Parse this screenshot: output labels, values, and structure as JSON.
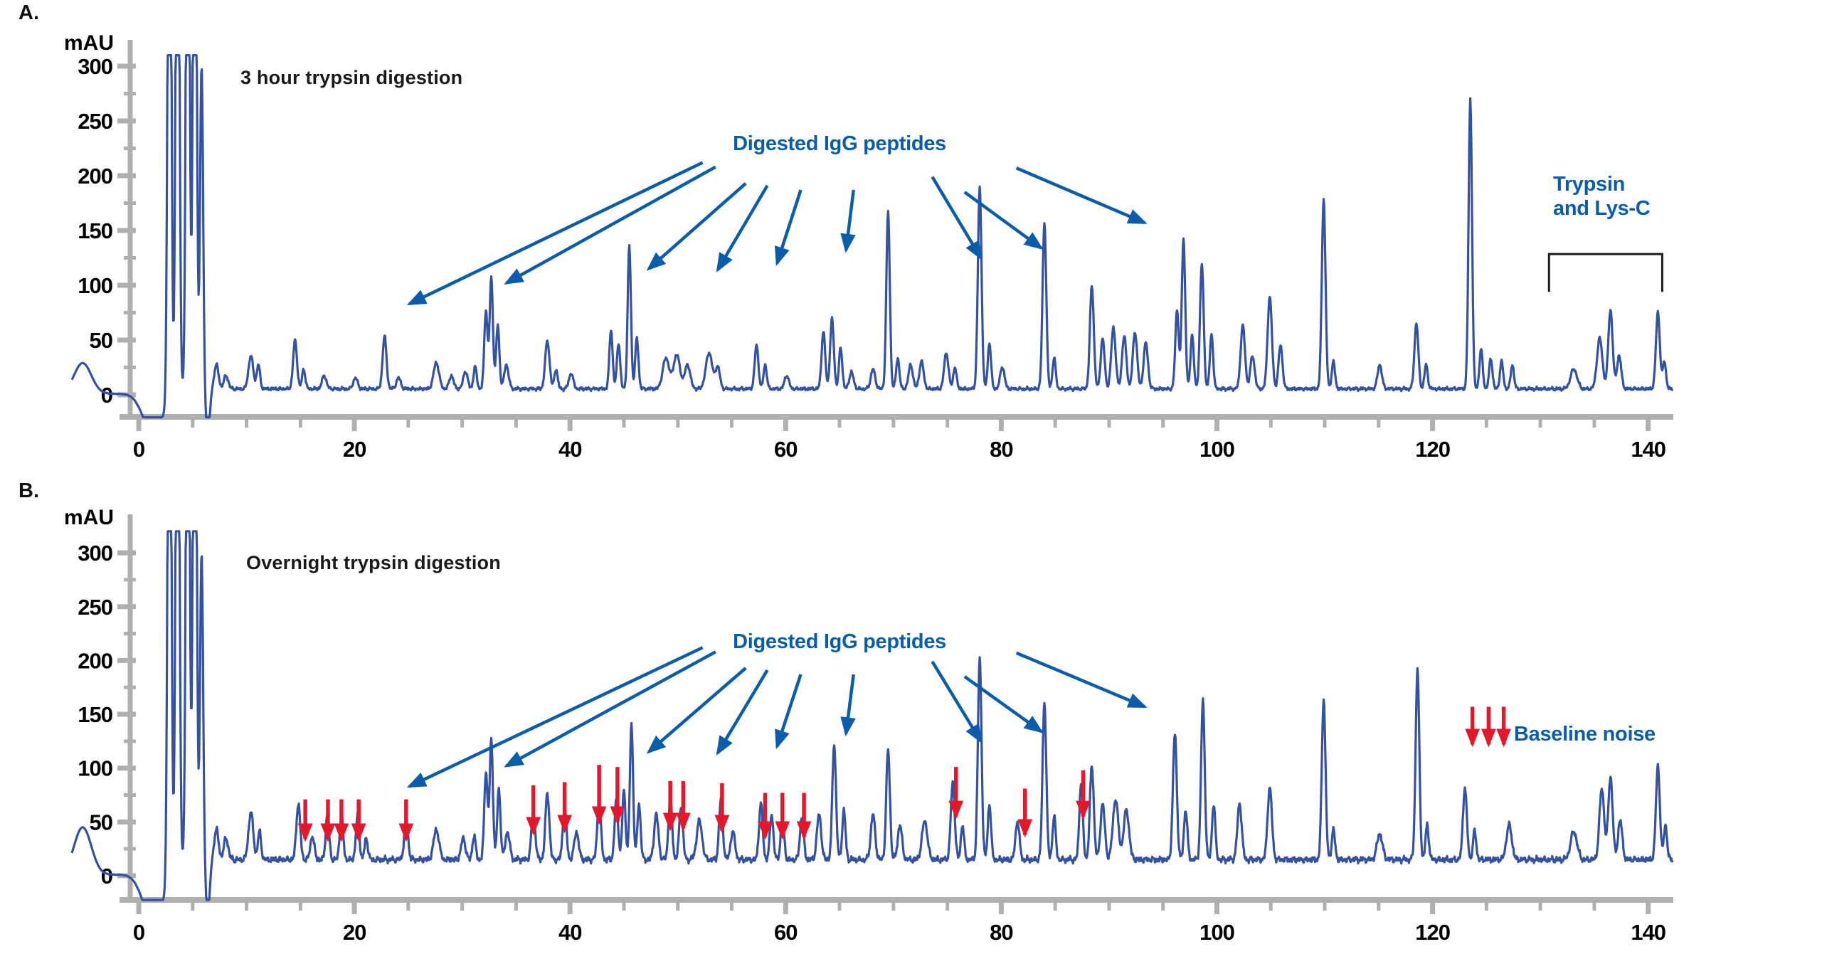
{
  "figure": {
    "background": "#ffffff",
    "colors": {
      "trace": "#3552A0",
      "annotation_blue": "#0B5CA9",
      "red_arrow": "#E4182C",
      "axis": "#AFAFAF",
      "bracket": "#1A1A1A",
      "tick_text": "#000000"
    }
  },
  "panels": [
    {
      "panel_label": "A.",
      "title": "3 hour trypsin digestion",
      "y_axis_unit": "mAU",
      "annotations": {
        "digested_label": "Digested IgG peptides",
        "trypsin_line1": "Trypsin",
        "trypsin_line2": "and Lys-C"
      }
    },
    {
      "panel_label": "B.",
      "title": "Overnight trypsin digestion",
      "y_axis_unit": "mAU",
      "annotations": {
        "digested_label": "Digested IgG peptides",
        "baseline_noise_label": "Baseline noise"
      }
    }
  ],
  "chart_data": [
    {
      "type": "line",
      "title": "3 hour trypsin digestion",
      "xlabel": "",
      "ylabel": "mAU",
      "xlim": [
        -6.5,
        142.3
      ],
      "ylim": [
        -20.5,
        310
      ],
      "xticks": [
        0,
        20,
        40,
        60,
        80,
        100,
        120,
        140
      ],
      "xminor_step": 5,
      "yticks": [
        0,
        50,
        100,
        150,
        200,
        250,
        300
      ],
      "yminor_step": 25,
      "grid": false,
      "baseline_mau": 5.5,
      "noise_amp": 2.2,
      "injection_bump": [
        -5.2,
        28,
        0.8
      ],
      "negative_dip": [
        [
          1.3,
          -35,
          0.9
        ],
        [
          6.4,
          -45,
          0.18
        ]
      ],
      "saturated_peaks": [
        [
          2.85,
          700,
          0.15
        ],
        [
          3.6,
          700,
          0.15
        ],
        [
          4.55,
          700,
          0.15
        ],
        [
          5.2,
          700,
          0.15
        ],
        [
          5.83,
          295,
          0.14
        ]
      ],
      "peaks": [
        [
          7.2,
          22,
          0.2
        ],
        [
          8.1,
          12,
          0.2
        ],
        [
          10.4,
          30,
          0.22
        ],
        [
          11.1,
          22,
          0.15
        ],
        [
          14.5,
          44,
          0.18
        ],
        [
          15.3,
          18,
          0.15
        ],
        [
          17.2,
          12,
          0.2
        ],
        [
          20.1,
          10,
          0.2
        ],
        [
          22.8,
          48,
          0.18
        ],
        [
          24.1,
          10,
          0.2
        ],
        [
          27.6,
          24,
          0.25
        ],
        [
          29,
          12,
          0.2
        ],
        [
          30.3,
          16,
          0.2
        ],
        [
          31.2,
          20,
          0.15
        ],
        [
          32.2,
          72,
          0.15
        ],
        [
          32.7,
          102,
          0.15
        ],
        [
          33.3,
          58,
          0.15
        ],
        [
          34.1,
          22,
          0.2
        ],
        [
          37.9,
          44,
          0.2
        ],
        [
          38.7,
          18,
          0.15
        ],
        [
          40.1,
          14,
          0.2
        ],
        [
          43.8,
          54,
          0.15
        ],
        [
          44.5,
          42,
          0.15
        ],
        [
          45.5,
          130,
          0.15
        ],
        [
          46.2,
          46,
          0.15
        ],
        [
          48.9,
          28,
          0.3
        ],
        [
          49.9,
          31,
          0.3
        ],
        [
          50.9,
          22,
          0.25
        ],
        [
          52.9,
          33,
          0.3
        ],
        [
          53.7,
          20,
          0.2
        ],
        [
          57.3,
          40,
          0.17
        ],
        [
          58.1,
          22,
          0.15
        ],
        [
          60.1,
          12,
          0.2
        ],
        [
          63.5,
          52,
          0.17
        ],
        [
          64.3,
          64,
          0.17
        ],
        [
          65.1,
          38,
          0.15
        ],
        [
          66.1,
          15,
          0.2
        ],
        [
          68.1,
          18,
          0.2
        ],
        [
          69.5,
          162,
          0.16
        ],
        [
          70.4,
          28,
          0.15
        ],
        [
          71.6,
          22,
          0.2
        ],
        [
          72.6,
          25,
          0.2
        ],
        [
          74.9,
          33,
          0.2
        ],
        [
          75.7,
          20,
          0.15
        ],
        [
          78,
          184,
          0.17
        ],
        [
          78.9,
          42,
          0.15
        ],
        [
          80.1,
          20,
          0.2
        ],
        [
          84,
          152,
          0.17
        ],
        [
          84.9,
          28,
          0.15
        ],
        [
          88.4,
          94,
          0.18
        ],
        [
          89.4,
          46,
          0.18
        ],
        [
          90.4,
          56,
          0.2
        ],
        [
          91.4,
          48,
          0.2
        ],
        [
          92.4,
          52,
          0.2
        ],
        [
          93.4,
          42,
          0.2
        ],
        [
          96.3,
          72,
          0.16
        ],
        [
          96.9,
          137,
          0.16
        ],
        [
          97.7,
          50,
          0.15
        ],
        [
          98.6,
          114,
          0.17
        ],
        [
          99.5,
          50,
          0.15
        ],
        [
          102.4,
          58,
          0.2
        ],
        [
          103.3,
          30,
          0.2
        ],
        [
          104.9,
          84,
          0.2
        ],
        [
          105.9,
          40,
          0.18
        ],
        [
          109.9,
          174,
          0.17
        ],
        [
          110.8,
          25,
          0.15
        ],
        [
          115.1,
          22,
          0.2
        ],
        [
          118.5,
          60,
          0.18
        ],
        [
          119.4,
          22,
          0.15
        ],
        [
          123.5,
          264,
          0.16
        ],
        [
          124.5,
          36,
          0.15
        ],
        [
          125.4,
          28,
          0.15
        ],
        [
          126.4,
          25,
          0.15
        ],
        [
          127.4,
          22,
          0.15
        ],
        [
          133.1,
          18,
          0.3
        ],
        [
          135.5,
          46,
          0.25
        ],
        [
          136.5,
          72,
          0.2
        ],
        [
          137.3,
          30,
          0.2
        ],
        [
          140.9,
          70,
          0.18
        ],
        [
          141.5,
          25,
          0.15
        ]
      ],
      "igg_arrows": [
        [
          52.3,
          212,
          25.1,
          83
        ],
        [
          53.5,
          208,
          34.1,
          102
        ],
        [
          56.3,
          193,
          47.3,
          115
        ],
        [
          58.3,
          191,
          53.7,
          114
        ],
        [
          61.4,
          187,
          59.2,
          120
        ],
        [
          66.3,
          187,
          65.6,
          132
        ],
        [
          73.6,
          199,
          78.1,
          125
        ],
        [
          76.6,
          185,
          83.7,
          134
        ],
        [
          81.4,
          207,
          93.3,
          157
        ]
      ],
      "bracket": {
        "t_start": 130.8,
        "t_end": 141.3,
        "mau_top": 128.5,
        "mau_leg": 94
      },
      "red_arrows": []
    },
    {
      "type": "line",
      "title": "Overnight trypsin digestion",
      "xlabel": "",
      "ylabel": "mAU",
      "xlim": [
        -6.5,
        142.3
      ],
      "ylim": [
        -22.5,
        320
      ],
      "xticks": [
        0,
        20,
        40,
        60,
        80,
        100,
        120,
        140
      ],
      "xminor_step": 5,
      "yticks": [
        0,
        50,
        100,
        150,
        200,
        250,
        300
      ],
      "yminor_step": 25,
      "grid": false,
      "baseline_mau": 15,
      "noise_amp": 4,
      "injection_bump": [
        -5.2,
        44,
        0.8
      ],
      "negative_dip": [
        [
          1.3,
          -42,
          0.9
        ],
        [
          6.4,
          -52,
          0.18
        ]
      ],
      "saturated_peaks": [
        [
          2.85,
          700,
          0.15
        ],
        [
          3.6,
          700,
          0.15
        ],
        [
          4.55,
          700,
          0.15
        ],
        [
          5.2,
          700,
          0.15
        ],
        [
          5.83,
          285,
          0.14
        ]
      ],
      "peaks": [
        [
          7.2,
          28,
          0.2
        ],
        [
          8.1,
          20,
          0.2
        ],
        [
          10.4,
          44,
          0.22
        ],
        [
          11.2,
          26,
          0.15
        ],
        [
          14.8,
          52,
          0.18
        ],
        [
          16.1,
          22,
          0.18
        ],
        [
          17.5,
          42,
          0.16
        ],
        [
          18.8,
          42,
          0.16
        ],
        [
          20.3,
          40,
          0.16
        ],
        [
          21.1,
          20,
          0.15
        ],
        [
          24.8,
          36,
          0.18
        ],
        [
          27.6,
          28,
          0.25
        ],
        [
          30.1,
          20,
          0.2
        ],
        [
          31.1,
          22,
          0.15
        ],
        [
          32.2,
          82,
          0.15
        ],
        [
          32.7,
          112,
          0.15
        ],
        [
          33.4,
          66,
          0.15
        ],
        [
          34.2,
          26,
          0.2
        ],
        [
          36.6,
          44,
          0.18
        ],
        [
          37.9,
          62,
          0.18
        ],
        [
          39.5,
          50,
          0.17
        ],
        [
          40.6,
          26,
          0.2
        ],
        [
          42.7,
          54,
          0.17
        ],
        [
          44.3,
          56,
          0.16
        ],
        [
          45,
          64,
          0.15
        ],
        [
          45.7,
          126,
          0.15
        ],
        [
          46.4,
          52,
          0.15
        ],
        [
          48,
          42,
          0.2
        ],
        [
          49.3,
          56,
          0.17
        ],
        [
          50.3,
          50,
          0.17
        ],
        [
          52,
          36,
          0.25
        ],
        [
          54,
          56,
          0.17
        ],
        [
          55.1,
          26,
          0.2
        ],
        [
          57.7,
          52,
          0.17
        ],
        [
          58.7,
          42,
          0.16
        ],
        [
          59.7,
          40,
          0.16
        ],
        [
          61.5,
          40,
          0.17
        ],
        [
          63.1,
          42,
          0.2
        ],
        [
          64.5,
          107,
          0.17
        ],
        [
          65.4,
          46,
          0.15
        ],
        [
          68.1,
          42,
          0.2
        ],
        [
          69.5,
          102,
          0.17
        ],
        [
          70.6,
          32,
          0.2
        ],
        [
          72.9,
          36,
          0.25
        ],
        [
          75.5,
          72,
          0.18
        ],
        [
          76.4,
          32,
          0.15
        ],
        [
          78,
          187,
          0.17
        ],
        [
          78.9,
          52,
          0.15
        ],
        [
          81.5,
          36,
          0.18
        ],
        [
          84,
          147,
          0.17
        ],
        [
          84.9,
          40,
          0.15
        ],
        [
          87.4,
          72,
          0.16
        ],
        [
          88.4,
          87,
          0.18
        ],
        [
          89.4,
          52,
          0.2
        ],
        [
          90.6,
          56,
          0.25
        ],
        [
          91.6,
          46,
          0.25
        ],
        [
          96.1,
          117,
          0.18
        ],
        [
          97.1,
          46,
          0.16
        ],
        [
          98.7,
          147,
          0.17
        ],
        [
          99.7,
          52,
          0.15
        ],
        [
          102.1,
          52,
          0.2
        ],
        [
          104.9,
          67,
          0.2
        ],
        [
          109.9,
          150,
          0.17
        ],
        [
          110.8,
          28,
          0.15
        ],
        [
          115.1,
          24,
          0.25
        ],
        [
          118.6,
          177,
          0.17
        ],
        [
          119.5,
          32,
          0.15
        ],
        [
          123,
          67,
          0.18
        ],
        [
          123.9,
          26,
          0.15
        ],
        [
          127.1,
          32,
          0.25
        ],
        [
          133.1,
          26,
          0.3
        ],
        [
          135.7,
          66,
          0.22
        ],
        [
          136.5,
          77,
          0.2
        ],
        [
          137.4,
          36,
          0.2
        ],
        [
          140.9,
          87,
          0.18
        ],
        [
          141.6,
          32,
          0.15
        ]
      ],
      "igg_arrows": [
        [
          52.3,
          212,
          25.1,
          83
        ],
        [
          53.5,
          208,
          34.1,
          102
        ],
        [
          56.3,
          193,
          47.3,
          115
        ],
        [
          58.3,
          191,
          53.7,
          114
        ],
        [
          61.4,
          187,
          59.2,
          120
        ],
        [
          66.3,
          187,
          65.6,
          132
        ],
        [
          73.6,
          199,
          78.1,
          125
        ],
        [
          76.6,
          185,
          83.7,
          134
        ],
        [
          81.4,
          207,
          93.3,
          157
        ]
      ],
      "bracket": null,
      "red_arrows": [
        [
          15.45,
          71,
          34
        ],
        [
          17.55,
          71,
          34
        ],
        [
          18.8,
          71,
          34
        ],
        [
          20.4,
          71,
          34
        ],
        [
          24.8,
          71,
          34
        ],
        [
          36.6,
          84,
          40
        ],
        [
          39.5,
          87,
          42
        ],
        [
          42.7,
          103,
          50
        ],
        [
          44.4,
          101,
          50
        ],
        [
          49.3,
          88,
          44
        ],
        [
          50.5,
          88,
          44
        ],
        [
          54.1,
          86,
          42
        ],
        [
          58.1,
          77,
          36
        ],
        [
          59.7,
          77,
          36
        ],
        [
          61.7,
          77,
          36
        ],
        [
          75.8,
          101,
          55
        ],
        [
          82.2,
          81,
          38
        ],
        [
          87.6,
          98,
          55
        ],
        [
          123.7,
          157,
          122
        ],
        [
          125.2,
          157,
          122
        ],
        [
          126.6,
          157,
          122
        ]
      ]
    }
  ]
}
